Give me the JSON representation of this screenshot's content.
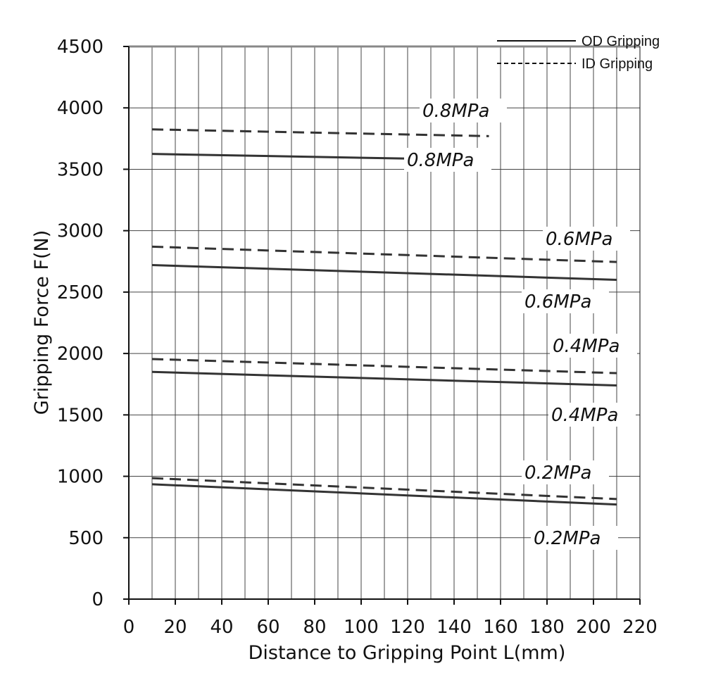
{
  "chart_data": {
    "type": "line",
    "xlabel": "Distance to Gripping Point L(mm)",
    "ylabel": "Gripping Force F(N)",
    "xlim": [
      0,
      220
    ],
    "ylim": [
      0,
      4500
    ],
    "x_ticks": [
      0,
      20,
      40,
      60,
      80,
      100,
      120,
      140,
      160,
      180,
      200,
      220
    ],
    "y_ticks": [
      0,
      500,
      1000,
      1500,
      2000,
      2500,
      3000,
      3500,
      4000,
      4500
    ],
    "grid": true,
    "legend_position": "top-right",
    "legend": [
      {
        "label": "OD Gripping",
        "style": "solid"
      },
      {
        "label": "ID Gripping",
        "style": "dashed"
      }
    ],
    "series": [
      {
        "group": "OD Gripping",
        "style": "solid",
        "label": "0.8MPa",
        "x": [
          10,
          155
        ],
        "y": [
          3625,
          3575
        ]
      },
      {
        "group": "ID Gripping",
        "style": "dashed",
        "label": "0.8MPa",
        "x": [
          10,
          155
        ],
        "y": [
          3825,
          3770
        ]
      },
      {
        "group": "OD Gripping",
        "style": "solid",
        "label": "0.6MPa",
        "x": [
          10,
          210
        ],
        "y": [
          2720,
          2600
        ]
      },
      {
        "group": "ID Gripping",
        "style": "dashed",
        "label": "0.6MPa",
        "x": [
          10,
          210
        ],
        "y": [
          2870,
          2745
        ]
      },
      {
        "group": "OD Gripping",
        "style": "solid",
        "label": "0.4MPa",
        "x": [
          10,
          210
        ],
        "y": [
          1850,
          1740
        ]
      },
      {
        "group": "ID Gripping",
        "style": "dashed",
        "label": "0.4MPa",
        "x": [
          10,
          210
        ],
        "y": [
          1955,
          1840
        ]
      },
      {
        "group": "OD Gripping",
        "style": "solid",
        "label": "0.2MPa",
        "x": [
          10,
          210
        ],
        "y": [
          935,
          770
        ]
      },
      {
        "group": "ID Gripping",
        "style": "dashed",
        "label": "0.2MPa",
        "x": [
          10,
          210
        ],
        "y": [
          985,
          815
        ]
      }
    ]
  }
}
